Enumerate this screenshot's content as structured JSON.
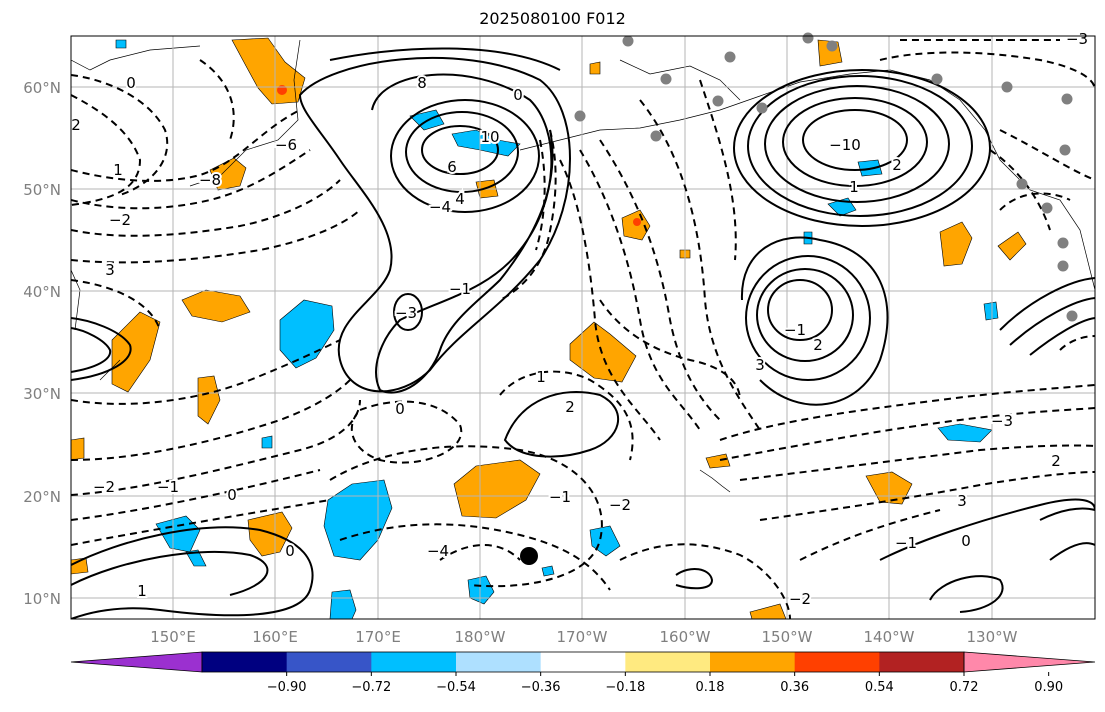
{
  "title": "2025080100 F012",
  "lat_labels": [
    "60°N",
    "50°N",
    "40°N",
    "30°N",
    "20°N",
    "10°N"
  ],
  "lon_labels": [
    "150°E",
    "160°E",
    "170°E",
    "180°W",
    "170°W",
    "160°W",
    "150°W",
    "140°W",
    "130°W"
  ],
  "colorbar": {
    "colors": [
      "#9b30d0",
      "#000080",
      "#3755c8",
      "#00bfff",
      "#aee0ff",
      "#ffffff",
      "#ffea80",
      "#ffa500",
      "#ff4000",
      "#b22222",
      "#ff88aa"
    ],
    "labels": [
      "−0.90",
      "−0.72",
      "−0.54",
      "−0.36",
      "−0.18",
      "0.18",
      "0.36",
      "0.54",
      "0.72",
      "0.90"
    ]
  },
  "contour_labels": [
    "0",
    "2",
    "1",
    "−2",
    "3",
    "8",
    "10",
    "6",
    "4",
    "−4",
    "−3",
    "−1",
    "0",
    "−6",
    "−8",
    "−10",
    "2",
    "1",
    "−1",
    "2",
    "3",
    "2",
    "1",
    "0",
    "−2",
    "−3",
    "2",
    "−4",
    "−1",
    "0",
    "−2",
    "−1",
    "0",
    "1",
    "−2",
    "3",
    "−1",
    "0",
    "−3"
  ],
  "station_markers": "grey dots",
  "marker": "black dot"
}
